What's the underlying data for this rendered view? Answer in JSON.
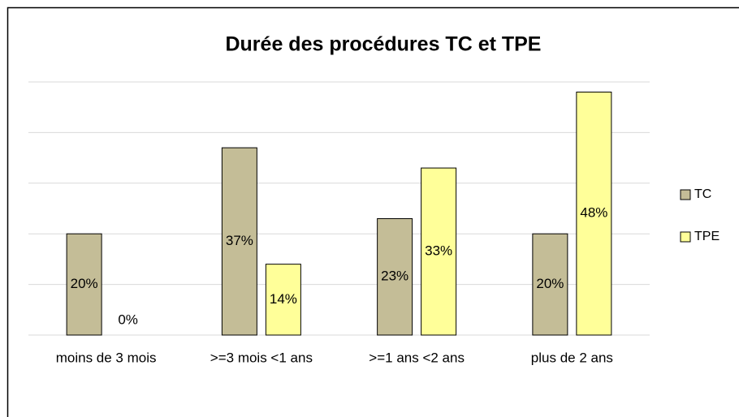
{
  "chart_data": {
    "type": "bar",
    "title": "Durée des procédures TC et TPE",
    "categories": [
      "moins de 3 mois",
      ">=3 mois <1 ans",
      ">=1 ans <2 ans",
      "plus de 2 ans"
    ],
    "series": [
      {
        "name": "TC",
        "color": "#c4bd97",
        "values": [
          20,
          37,
          23,
          20
        ],
        "value_labels": [
          "20%",
          "37%",
          "23%",
          "20%"
        ]
      },
      {
        "name": "TPE",
        "color": "#ffff99",
        "values": [
          0,
          14,
          33,
          48
        ],
        "value_labels": [
          "0%",
          "14%",
          "33%",
          "48%"
        ]
      }
    ],
    "ylim": [
      0,
      50
    ],
    "yticks": [
      0,
      10,
      20,
      30,
      40,
      50
    ],
    "grid": true,
    "legend": "right"
  }
}
